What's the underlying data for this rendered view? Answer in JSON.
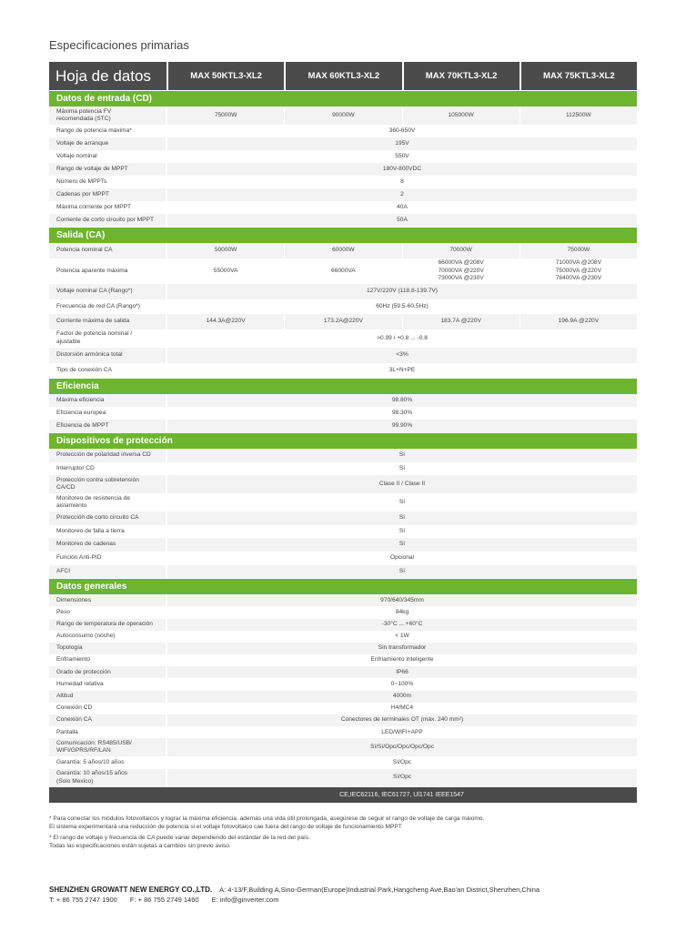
{
  "page_title": "Especificaciones primarias",
  "header": {
    "title": "Hoja de datos",
    "models": [
      "MAX 50KTL3-XL2",
      "MAX 60KTL3-XL2",
      "MAX 70KTL3-XL2",
      "MAX 75KTL3-XL2"
    ]
  },
  "colors": {
    "green": "#6cb52d",
    "dark": "#4b4b4b"
  },
  "sections": [
    {
      "title": "Datos de entrada (CD)",
      "rows": [
        {
          "label": "Máxima potencia FV\nrecomendada (STC)",
          "values": [
            "75000W",
            "90000W",
            "105000W",
            "112500W"
          ]
        },
        {
          "label": "Rango de potencia máxima*",
          "values": [
            "360-650V"
          ]
        },
        {
          "label": "Voltaje de arranque",
          "values": [
            "195V"
          ]
        },
        {
          "label": "Voltaje nominal",
          "values": [
            "550V"
          ]
        },
        {
          "label": "Rango de voltaje de MPPT",
          "values": [
            "180V-800VDC"
          ]
        },
        {
          "label": "Número de MPPTs",
          "values": [
            "8"
          ]
        },
        {
          "label": "Cadenas por MPPT",
          "values": [
            "2"
          ]
        },
        {
          "label": "Máxima corriente por MPPT",
          "values": [
            "40A"
          ]
        },
        {
          "label": "Corriente de corto circuito por MPPT",
          "values": [
            "50A"
          ]
        }
      ]
    },
    {
      "title": "Salida (CA)",
      "rows": [
        {
          "label": "Potencia nominal CA",
          "values": [
            "50000W",
            "60000W",
            "70000W",
            "75000W"
          ]
        },
        {
          "label": "Potencia aparente máxima",
          "values": [
            "55000VA",
            "66000VA",
            "66000VA @208V\n70000VA @220V\n73000VA @230V",
            "71000VA @208V\n75000VA @220V\n78400VA @230V"
          ]
        },
        {
          "label": "Voltaje nominal CA (Rango*)",
          "values": [
            "127V/220V (118.8-139.7V)"
          ]
        },
        {
          "label": "Frecuencia de red CA (Rango*)",
          "values": [
            "60Hz (59.5-60.5Hz)"
          ]
        },
        {
          "label": "Corriente máxima de salida",
          "values": [
            "144.3A@220V",
            "173.2A@220V",
            "183.7A @220V",
            "196.9A @220V"
          ]
        },
        {
          "label": "Factor de potencia nominal /\najustable",
          "values": [
            ">0.99 / +0.8 ... -0.8"
          ]
        },
        {
          "label": "Distorsión armónica total",
          "values": [
            "<3%"
          ]
        },
        {
          "label": "Tipo de conexión CA",
          "values": [
            "3L+N+PE"
          ]
        }
      ]
    },
    {
      "title": "Eficiencia",
      "rows": [
        {
          "label": "Máxima eficiencia",
          "values": [
            "98.80%"
          ]
        },
        {
          "label": "Eficiencia europea",
          "values": [
            "98.30%"
          ]
        },
        {
          "label": "Eficiencia de MPPT",
          "values": [
            "99.90%"
          ]
        }
      ]
    },
    {
      "title": "Dispositivos de protección",
      "rows": [
        {
          "label": "Protección de polaridad inversa CD",
          "values": [
            "Sí"
          ]
        },
        {
          "label": "Interruptor CD",
          "values": [
            "Sí"
          ]
        },
        {
          "label": "Protección contra sobretensión\nCA/CD",
          "values": [
            "Clase II / Clase II"
          ]
        },
        {
          "label": "Monitoreo de resistencia de\naislamiento",
          "values": [
            "Sí"
          ]
        },
        {
          "label": "Protección de corto circuito CA",
          "values": [
            "Sí"
          ]
        },
        {
          "label": "Monitoreo de falla a tierra",
          "values": [
            "Sí"
          ]
        },
        {
          "label": "Monitoreo de cadenas",
          "values": [
            "Sí"
          ]
        },
        {
          "label": "Función Anti-PID",
          "values": [
            "Opcional"
          ]
        },
        {
          "label": "AFCI",
          "values": [
            "Sí"
          ]
        }
      ]
    },
    {
      "title": "Datos generales",
      "rows": [
        {
          "label": "Dimensiones",
          "values": [
            "970/640/345mm"
          ]
        },
        {
          "label": "Peso",
          "values": [
            "84kg"
          ]
        },
        {
          "label": "Rango de temperatura de operación",
          "values": [
            "-30°C ... +60°C"
          ]
        },
        {
          "label": "Autoconsumo (noche)",
          "values": [
            "< 1W"
          ]
        },
        {
          "label": "Topología",
          "values": [
            "Sin transformador"
          ]
        },
        {
          "label": "Enfriamiento",
          "values": [
            "Enfriamiento inteligente"
          ]
        },
        {
          "label": "Grado de protección",
          "values": [
            "IP66"
          ]
        },
        {
          "label": "Humedad relativa",
          "values": [
            "0~100%"
          ]
        },
        {
          "label": "Altitud",
          "values": [
            "4000m"
          ]
        },
        {
          "label": "Conexión CD",
          "values": [
            "H4/MC4"
          ]
        },
        {
          "label": "Conexión CA",
          "values": [
            "Conectores de terminales OT (máx. 240 mm²)"
          ]
        },
        {
          "label": "Pantalla",
          "values": [
            "LED/WIFI+APP"
          ]
        },
        {
          "label": "Comunicación: RS485/USB/\nWIFI/GPRS/RF/LAN",
          "values": [
            "Sí/Sí/Opc/Opc/Opc/Opc"
          ]
        },
        {
          "label": "Garantía: 5 años/10 años",
          "values": [
            "Sí/Opc"
          ]
        },
        {
          "label": "Garantía: 10 años/15 años\n(Solo Mexico)",
          "values": [
            "Sí/Opc"
          ]
        }
      ]
    }
  ],
  "certifications": "CE,IEC62116, IEC61727, Ul1741 IEEE1547",
  "notes": [
    "* Para conectar los módulos fotovoltaicos y lograr la máxima eficiencia, además una vida útil prolongada, asegúrese de seguir el rango de voltaje de carga máximo.\n   El sistema experimentará una reducción de potencia si el voltaje fotovoltaico cae fuera del rango de voltaje de funcionamiento MPPT",
    "* El rango de voltaje y frecuencia de CA puede variar dependiendo del estándar de la red del país.\n   Todas las especificaciones están sujetas a cambios sin previo aviso."
  ],
  "footer": {
    "company": "SHENZHEN GROWATT NEW ENERGY CO.,LTD.",
    "address": "A: 4-13/F,Building A,Sino-German(Europe)Industrial Park,Hangcheng Ave,Bao'an District,Shenzhen,China",
    "tel": "T:  + 86 755 2747 1900",
    "fax": "F:  + 86 755 2749 1460",
    "email": "E:  info@ginverter.com"
  }
}
